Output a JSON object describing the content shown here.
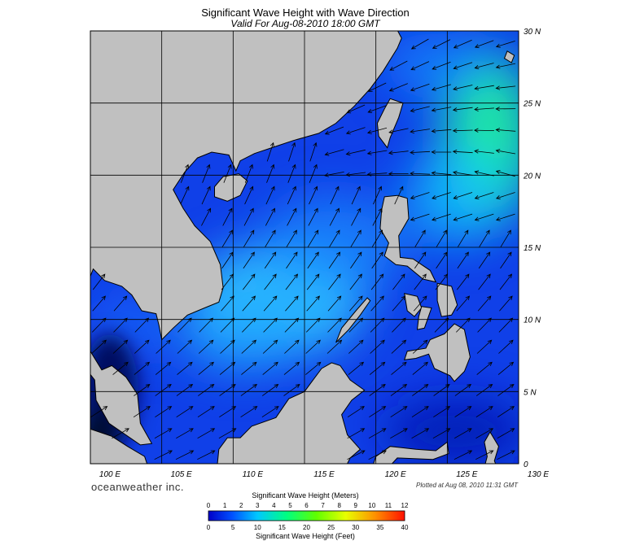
{
  "header": {
    "title": "Significant Wave Height with Wave Direction",
    "subtitle": "Valid For Aug-08-2010 18:00 GMT"
  },
  "map": {
    "lat_labels": [
      "30 N",
      "25 N",
      "20 N",
      "15 N",
      "10 N",
      "5 N",
      "0"
    ],
    "lon_labels": [
      "100 E",
      "105 E",
      "110 E",
      "115 E",
      "120 E",
      "125 E",
      "130 E"
    ]
  },
  "footer": {
    "brand": "oceanweather inc.",
    "plotted": "Plotted at Aug 08, 2010 11:31 GMT"
  },
  "legend": {
    "meters_title": "Significant Wave Height (Meters)",
    "meters_ticks": [
      "0",
      "1",
      "2",
      "3",
      "4",
      "5",
      "6",
      "7",
      "8",
      "9",
      "10",
      "11",
      "12"
    ],
    "feet_ticks": [
      "0",
      "5",
      "10",
      "15",
      "20",
      "25",
      "30",
      "35",
      "40"
    ],
    "feet_title": "Significant Wave Height (Feet)"
  }
}
